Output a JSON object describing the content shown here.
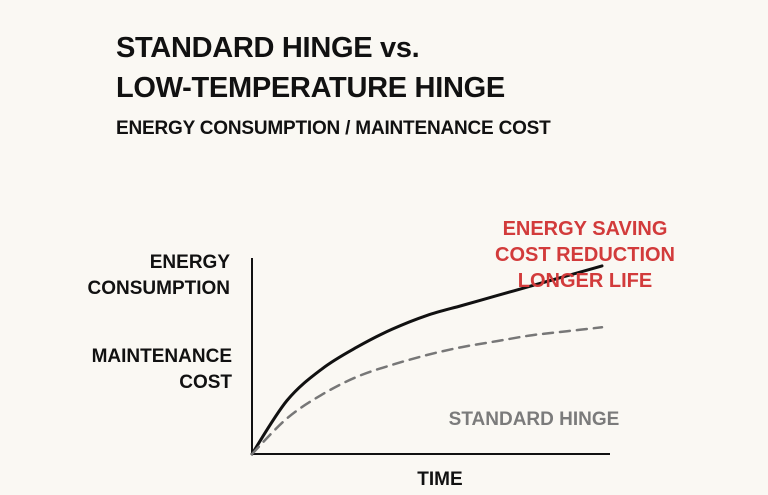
{
  "header": {
    "title_line1": "STANDARD HINGE vs.",
    "title_line2": "LOW-TEMPERATURE HINGE",
    "subtitle": "ENERGY CONSUMPTION / MAINTENANCE COST"
  },
  "chart_data": {
    "type": "line",
    "title": "STANDARD HINGE vs. LOW-TEMPERATURE HINGE",
    "subtitle": "ENERGY CONSUMPTION / MAINTENANCE COST",
    "xlabel": "TIME",
    "ylabels": [
      "ENERGY CONSUMPTION",
      "MAINTENANCE COST"
    ],
    "grid": false,
    "series": [
      {
        "curve": "upper",
        "style": "solid",
        "color": "#111111",
        "annotation": [
          "ENERGY SAVING",
          "COST REDUCTION",
          "LONGER LIFE"
        ],
        "annotation_color": "#d23b3b",
        "x": [
          0,
          0.1,
          0.2,
          0.3,
          0.4,
          0.5,
          0.6,
          0.7,
          0.8,
          0.9,
          1.0
        ],
        "y": [
          0,
          0.27,
          0.43,
          0.54,
          0.63,
          0.7,
          0.75,
          0.8,
          0.85,
          0.9,
          0.95
        ]
      },
      {
        "name": "STANDARD HINGE",
        "style": "dashed",
        "color": "#777777",
        "label_color": "#7b7b7b",
        "x": [
          0,
          0.1,
          0.2,
          0.3,
          0.4,
          0.5,
          0.6,
          0.7,
          0.8,
          0.9,
          1.0
        ],
        "y": [
          0,
          0.18,
          0.3,
          0.39,
          0.45,
          0.5,
          0.54,
          0.57,
          0.6,
          0.62,
          0.64
        ]
      }
    ]
  }
}
